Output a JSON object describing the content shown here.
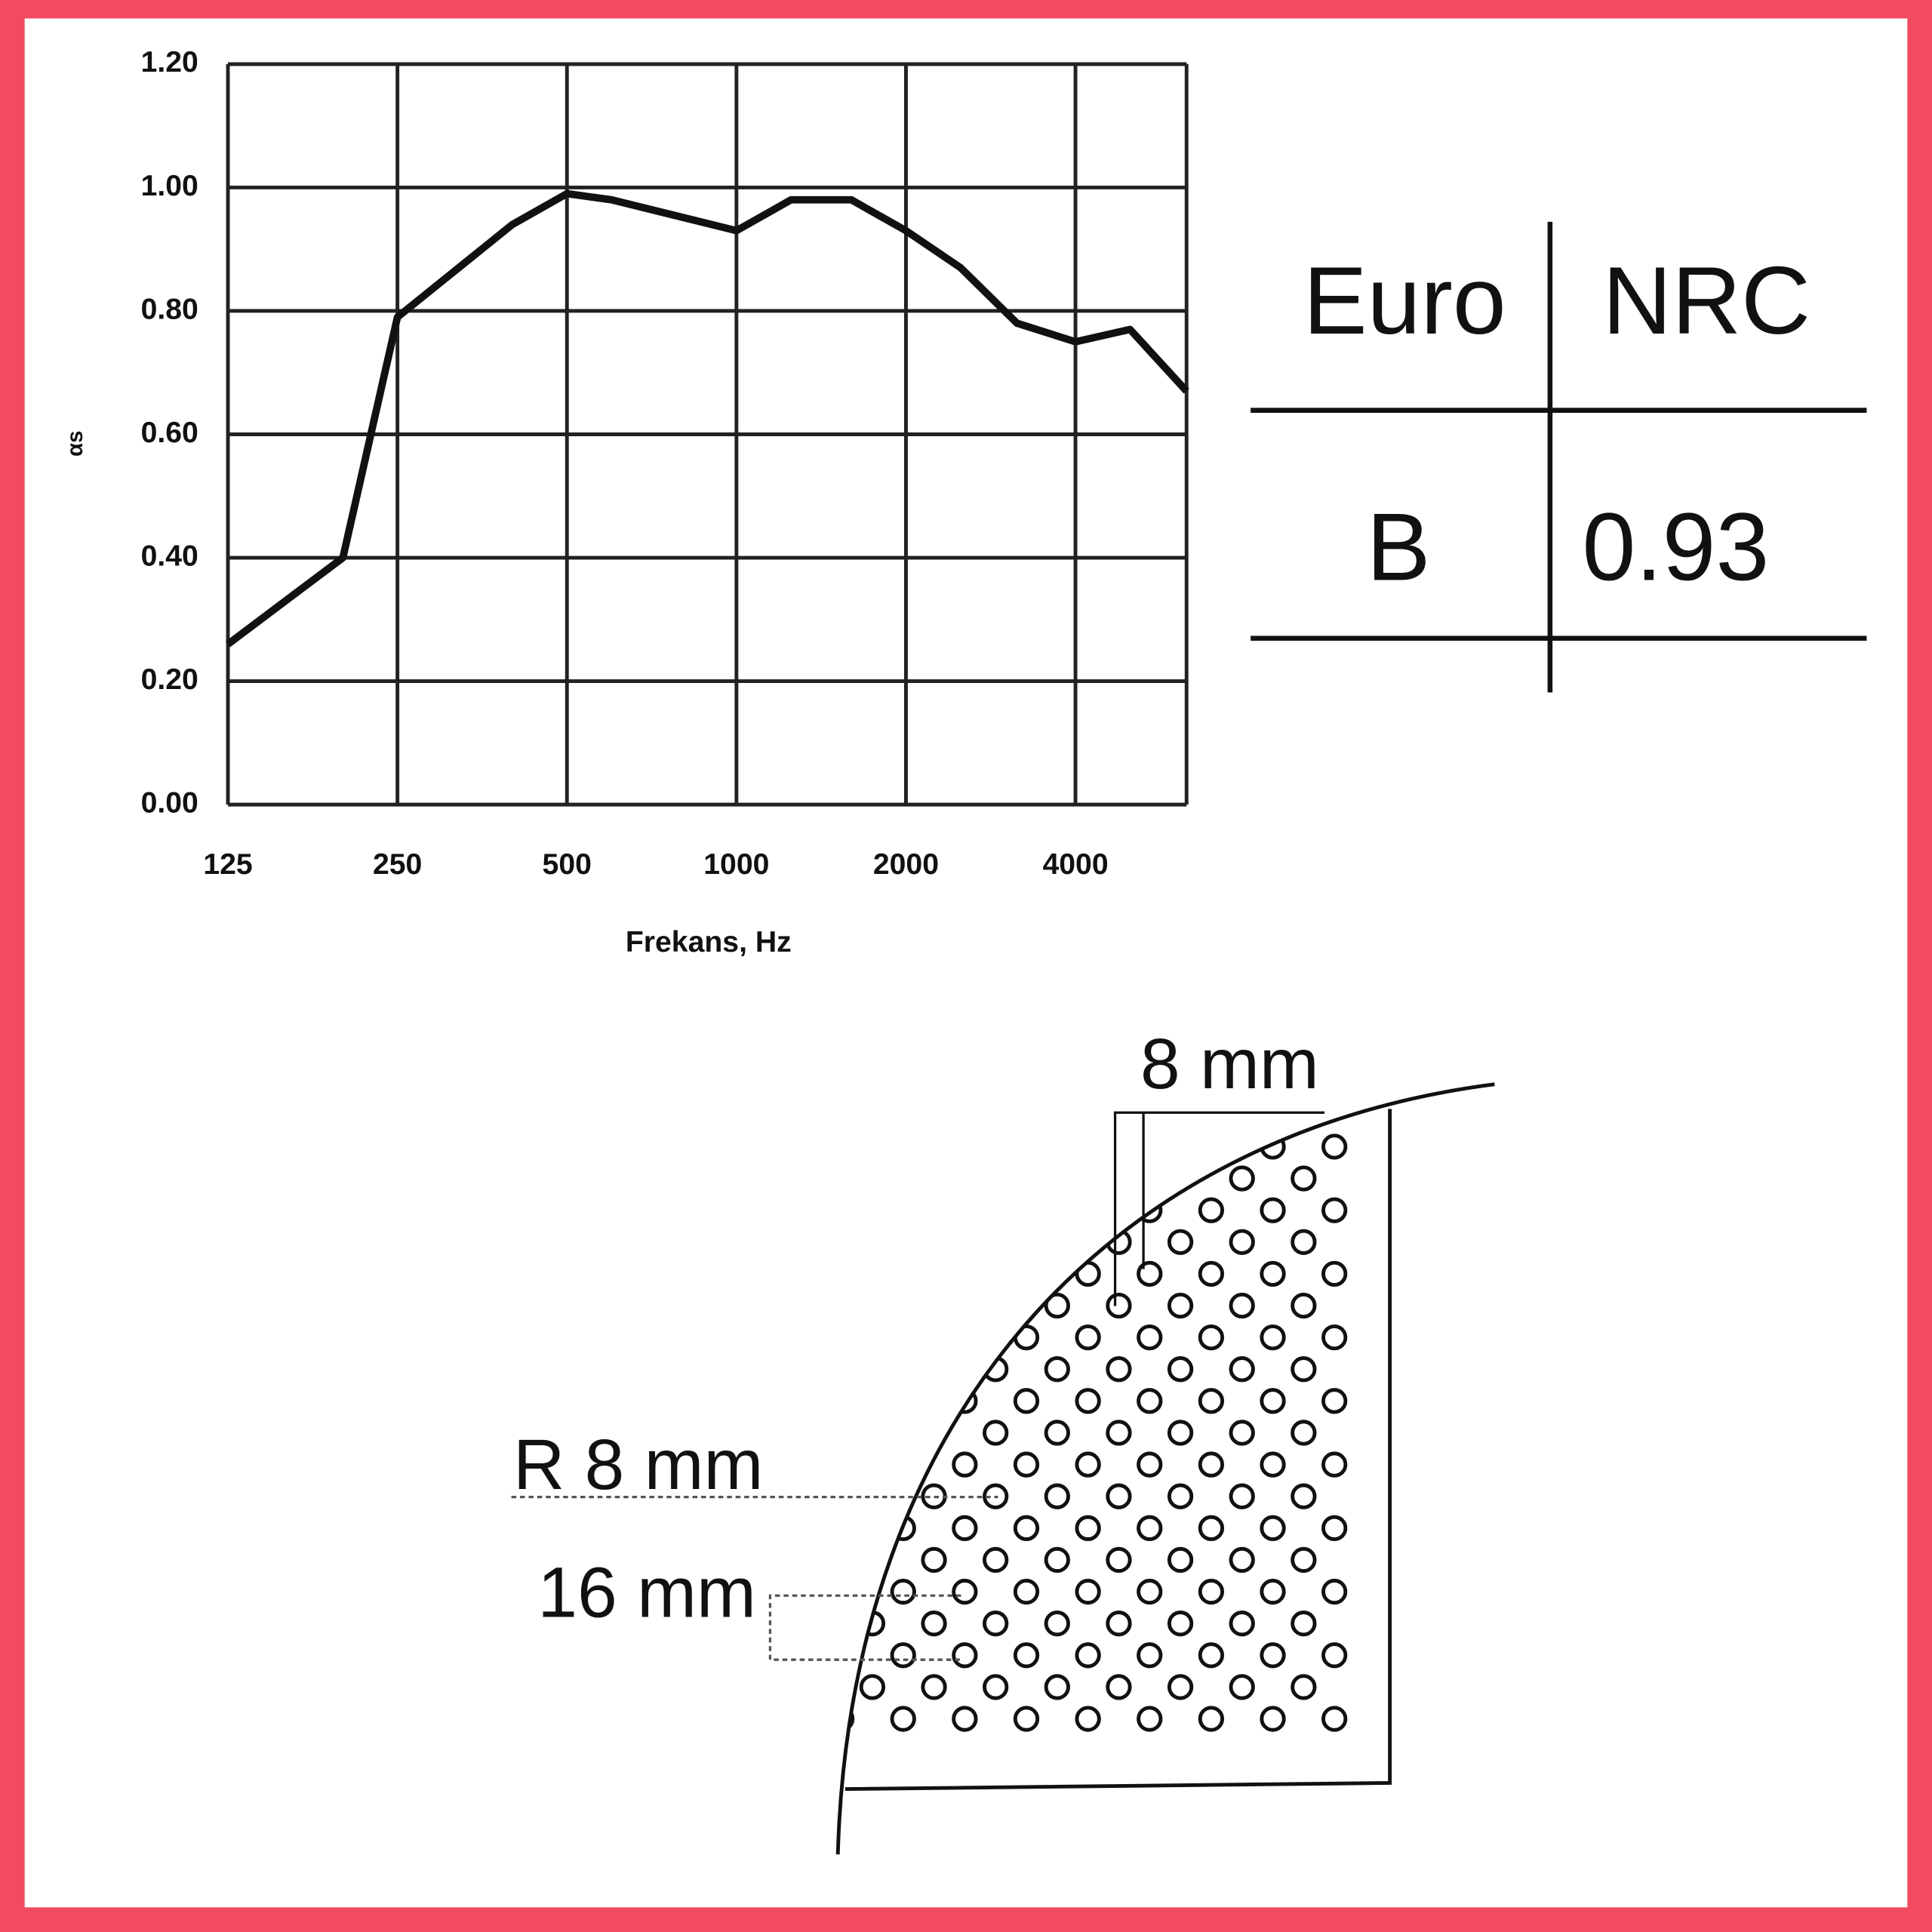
{
  "chart_data": {
    "type": "line",
    "ylabel": "αs",
    "xlabel": "Frekans, Hz",
    "x": [
      125,
      200,
      250,
      400,
      500,
      600,
      1000,
      1250,
      1600,
      2000,
      2500,
      3150,
      4000,
      5000,
      6300
    ],
    "values": [
      0.26,
      0.4,
      0.79,
      0.94,
      0.99,
      0.98,
      0.93,
      0.98,
      0.98,
      0.93,
      0.87,
      0.78,
      0.75,
      0.77,
      0.67
    ],
    "color": "#111111",
    "log_x": true,
    "grid": true,
    "xlim": [
      125,
      6300
    ],
    "ylim": [
      0,
      1.2
    ],
    "xticks": [
      125,
      250,
      500,
      1000,
      2000,
      4000
    ],
    "yticks": [
      {
        "value": 0,
        "label": "0.00"
      },
      {
        "value": 0.2,
        "label": "0.20"
      },
      {
        "value": 0.4,
        "label": "0.40"
      },
      {
        "value": 0.6,
        "label": "0.60"
      },
      {
        "value": 0.8,
        "label": "0.80"
      },
      {
        "value": 1.0,
        "label": "1.00"
      },
      {
        "value": 1.2,
        "label": "1.20"
      }
    ]
  },
  "table": {
    "header": [
      "Euro",
      "NRC"
    ],
    "rows": [
      [
        "B",
        0.93
      ]
    ]
  },
  "diagram": {
    "labels": [
      "8 mm",
      "R 8 mm",
      "16 mm"
    ]
  }
}
